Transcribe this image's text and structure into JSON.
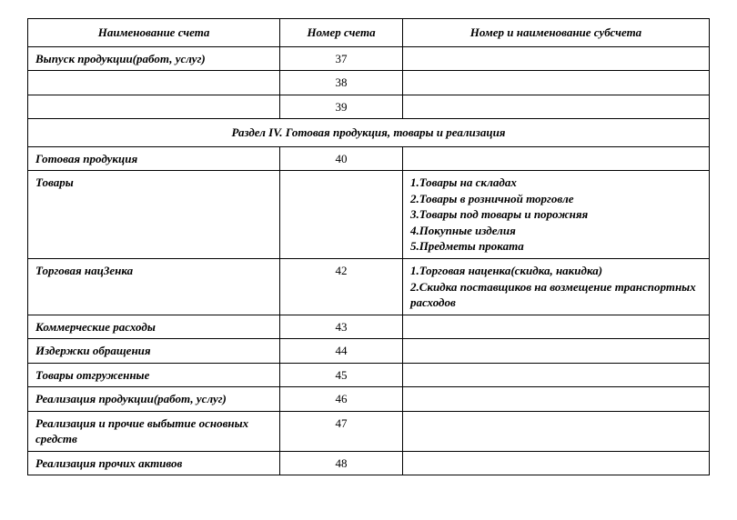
{
  "headers": {
    "name": "Наименование счета",
    "number": "Номер счета",
    "subaccount": "Номер и наименование субсчета"
  },
  "rows": {
    "r1": {
      "name": "Выпуск продукции(работ, услуг)",
      "num": "37",
      "sub": ""
    },
    "r2": {
      "name": "",
      "num": "38",
      "sub": ""
    },
    "r3": {
      "name": "",
      "num": "39",
      "sub": ""
    },
    "section": "Раздел IV. Готовая продукция, товары  и реализация",
    "r4": {
      "name": "Готовая продукция",
      "num": "40",
      "sub": ""
    },
    "r5": {
      "name": "Товары",
      "num": "",
      "sub": "1.Товары на складах\n2.Товары в розничной торговле\n3.Товары под товары и порожняя\n4.Покупные изделия\n5.Предметы проката"
    },
    "r6": {
      "name": "Торговая нац3енка",
      "num": "42",
      "sub": "1.Торговая наценка(скидка, накидка)\n2.Скидка поставщиков на возмещение транспортных расходов"
    },
    "r7": {
      "name": "Коммерческие расходы",
      "num": "43",
      "sub": ""
    },
    "r8": {
      "name": "Издержки обращения",
      "num": "44",
      "sub": ""
    },
    "r9": {
      "name": "Товары отгруженные",
      "num": "45",
      "sub": ""
    },
    "r10": {
      "name": "Реализация продукции(работ, услуг)",
      "num": "46",
      "sub": ""
    },
    "r11": {
      "name": "Реализация и прочие выбытие основных средств",
      "num": "47",
      "sub": ""
    },
    "r12": {
      "name": "Реализация прочих активов",
      "num": "48",
      "sub": ""
    }
  }
}
